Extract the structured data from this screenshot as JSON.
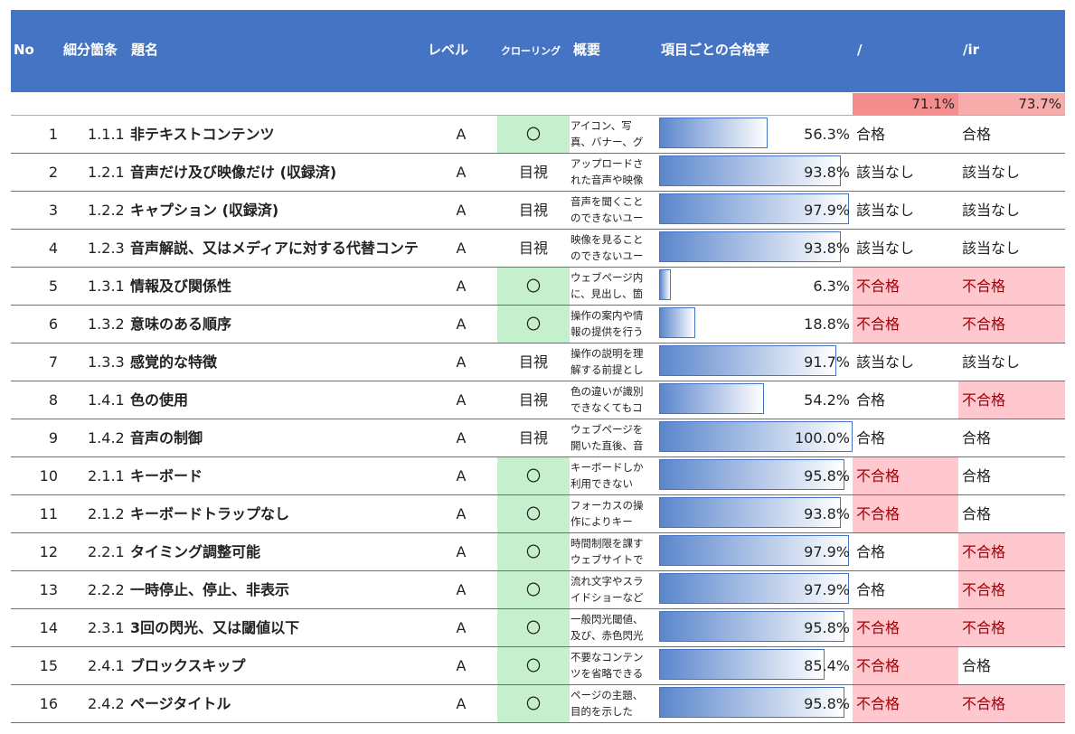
{
  "header": {
    "no": "No",
    "section": "細分箇条",
    "title": "題名",
    "level": "レベル",
    "crawling": "クローリング",
    "summary": "概要",
    "pass_rate": "項目ごとの合格率",
    "col_a": "/",
    "col_b": "/ir"
  },
  "totals": {
    "col_a": "71.1%",
    "col_b": "73.7%"
  },
  "colors": {
    "header_bg": "#4674c4",
    "pass_crawl": "#c6efce",
    "fail_bg": "#ffc7ce",
    "fail_text": "#9c0006"
  },
  "rows": [
    {
      "no": "1",
      "code": "1.1.1",
      "title": "非テキストコンテンツ",
      "level": "A",
      "crawl": "〇",
      "desc": "アイコン、写真、バナー、グ",
      "pct": "56.3%",
      "rate": 0.563,
      "r1": "合格",
      "r2": "合格"
    },
    {
      "no": "2",
      "code": "1.2.1",
      "title": "音声だけ及び映像だけ (収録済)",
      "level": "A",
      "crawl": "目視",
      "desc": "アップロードされた音声や映像",
      "pct": "93.8%",
      "rate": 0.938,
      "r1": "該当なし",
      "r2": "該当なし"
    },
    {
      "no": "3",
      "code": "1.2.2",
      "title": "キャプション (収録済)",
      "level": "A",
      "crawl": "目視",
      "desc": "音声を聞くことのできないユー",
      "pct": "97.9%",
      "rate": 0.979,
      "r1": "該当なし",
      "r2": "該当なし"
    },
    {
      "no": "4",
      "code": "1.2.3",
      "title": "音声解説、又はメディアに対する代替コンテ",
      "level": "A",
      "crawl": "目視",
      "desc": "映像を見ることのできないユー",
      "pct": "93.8%",
      "rate": 0.938,
      "r1": "該当なし",
      "r2": "該当なし"
    },
    {
      "no": "5",
      "code": "1.3.1",
      "title": "情報及び関係性",
      "level": "A",
      "crawl": "〇",
      "desc": "ウェブページ内に、見出し、箇",
      "pct": "6.3%",
      "rate": 0.063,
      "r1": "不合格",
      "r2": "不合格"
    },
    {
      "no": "6",
      "code": "1.3.2",
      "title": "意味のある順序",
      "level": "A",
      "crawl": "〇",
      "desc": "操作の案内や情報の提供を行う",
      "pct": "18.8%",
      "rate": 0.188,
      "r1": "不合格",
      "r2": "不合格"
    },
    {
      "no": "7",
      "code": "1.3.3",
      "title": "感覚的な特徴",
      "level": "A",
      "crawl": "目視",
      "desc": "操作の説明を理解する前提とし",
      "pct": "91.7%",
      "rate": 0.917,
      "r1": "該当なし",
      "r2": "該当なし"
    },
    {
      "no": "8",
      "code": "1.4.1",
      "title": "色の使用",
      "level": "A",
      "crawl": "目視",
      "desc": "色の違いが識別できなくてもコ",
      "pct": "54.2%",
      "rate": 0.542,
      "r1": "合格",
      "r2": "不合格"
    },
    {
      "no": "9",
      "code": "1.4.2",
      "title": "音声の制御",
      "level": "A",
      "crawl": "目視",
      "desc": "ウェブページを開いた直後、音",
      "pct": "100.0%",
      "rate": 1.0,
      "r1": "合格",
      "r2": "合格"
    },
    {
      "no": "10",
      "code": "2.1.1",
      "title": "キーボード",
      "level": "A",
      "crawl": "〇",
      "desc": "キーボードしか利用できない",
      "pct": "95.8%",
      "rate": 0.958,
      "r1": "不合格",
      "r2": "合格"
    },
    {
      "no": "11",
      "code": "2.1.2",
      "title": "キーボードトラップなし",
      "level": "A",
      "crawl": "〇",
      "desc": "フォーカスの操作によりキー",
      "pct": "93.8%",
      "rate": 0.938,
      "r1": "不合格",
      "r2": "合格"
    },
    {
      "no": "12",
      "code": "2.2.1",
      "title": "タイミング調整可能",
      "level": "A",
      "crawl": "〇",
      "desc": "時間制限を課すウェブサイトで",
      "pct": "97.9%",
      "rate": 0.979,
      "r1": "合格",
      "r2": "不合格"
    },
    {
      "no": "13",
      "code": "2.2.2",
      "title": "一時停止、停止、非表示",
      "level": "A",
      "crawl": "〇",
      "desc": "流れ文字やスライドショーなど",
      "pct": "97.9%",
      "rate": 0.979,
      "r1": "合格",
      "r2": "不合格"
    },
    {
      "no": "14",
      "code": "2.3.1",
      "title": "3回の閃光、又は閾値以下",
      "level": "A",
      "crawl": "〇",
      "desc": "一般閃光閾値、及び、赤色閃光",
      "pct": "95.8%",
      "rate": 0.958,
      "r1": "不合格",
      "r2": "不合格"
    },
    {
      "no": "15",
      "code": "2.4.1",
      "title": "ブロックスキップ",
      "level": "A",
      "crawl": "〇",
      "desc": "不要なコンテンツを省略できる",
      "pct": "85.4%",
      "rate": 0.854,
      "r1": "不合格",
      "r2": "合格"
    },
    {
      "no": "16",
      "code": "2.4.2",
      "title": "ページタイトル",
      "level": "A",
      "crawl": "〇",
      "desc": "ページの主題、目的を示した",
      "pct": "95.8%",
      "rate": 0.958,
      "r1": "不合格",
      "r2": "不合格"
    }
  ]
}
